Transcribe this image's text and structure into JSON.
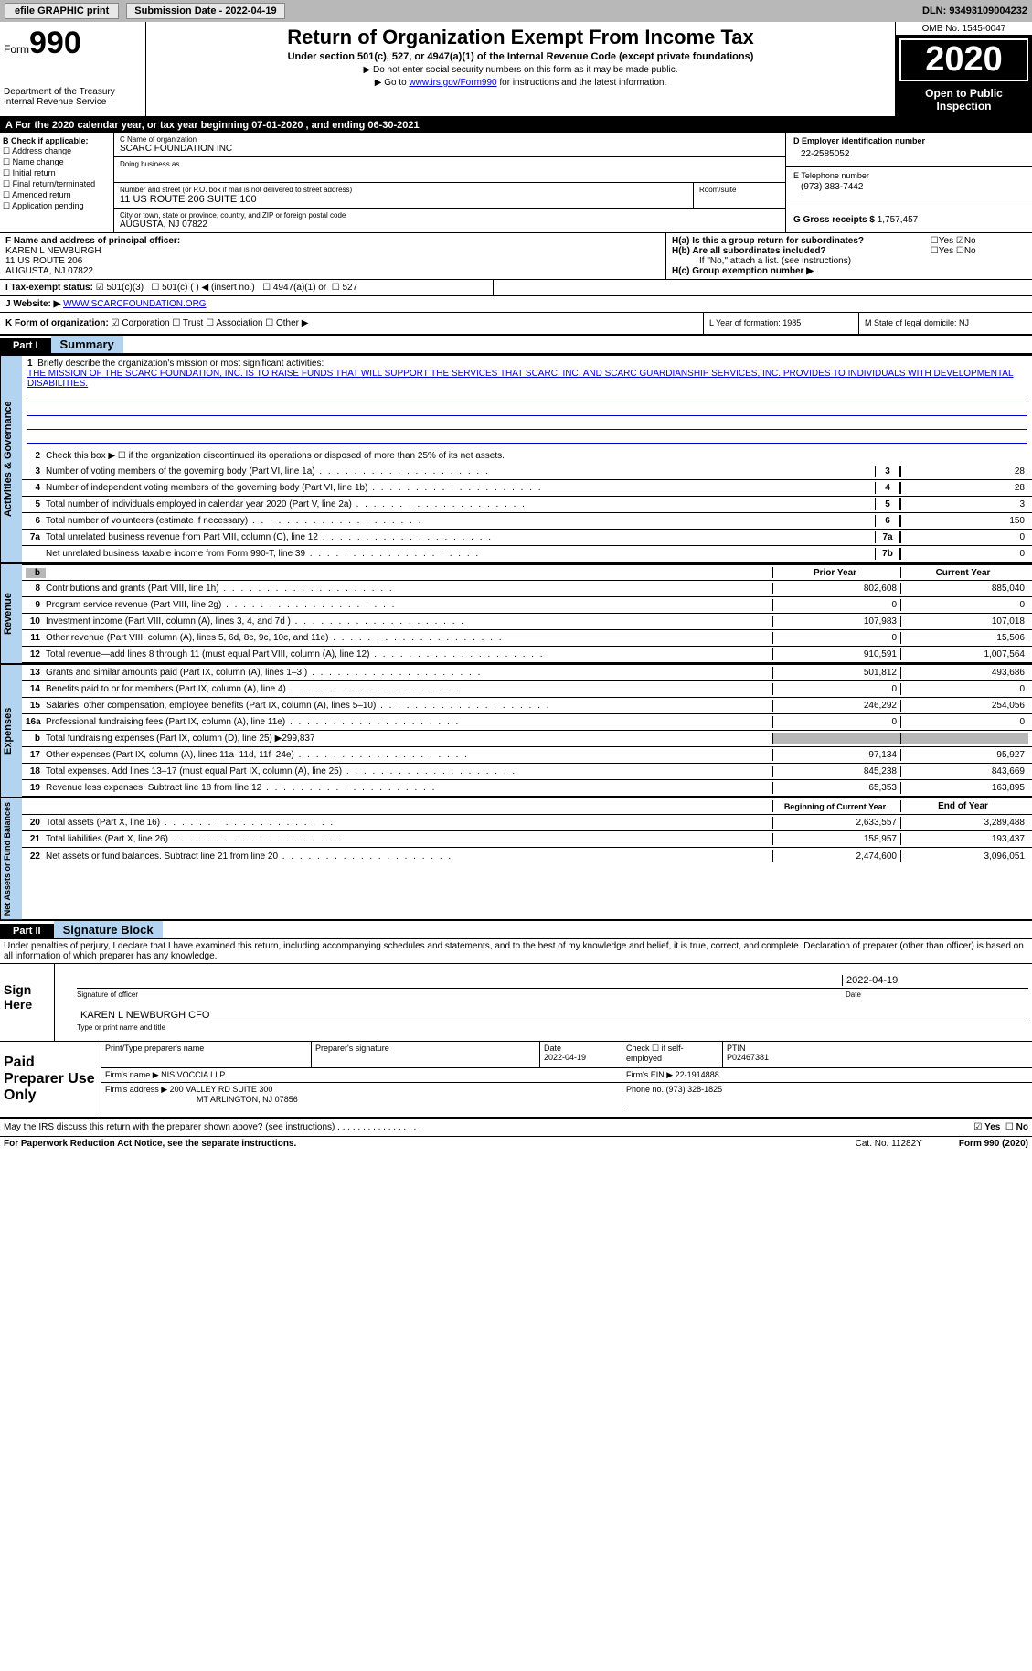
{
  "topbar": {
    "efile": "efile GRAPHIC print",
    "sub_label": "Submission Date - 2022-04-19",
    "dln": "DLN: 93493109004232"
  },
  "header": {
    "form": "Form",
    "form_num": "990",
    "dept": "Department of the Treasury\nInternal Revenue Service",
    "title": "Return of Organization Exempt From Income Tax",
    "sub": "Under section 501(c), 527, or 4947(a)(1) of the Internal Revenue Code (except private foundations)",
    "inst1": "▶ Do not enter social security numbers on this form as it may be made public.",
    "inst2_pre": "▶ Go to ",
    "inst2_link": "www.irs.gov/Form990",
    "inst2_post": " for instructions and the latest information.",
    "omb": "OMB No. 1545-0047",
    "year": "2020",
    "open": "Open to Public Inspection"
  },
  "taxyear": "A For the 2020 calendar year, or tax year beginning 07-01-2020    , and ending 06-30-2021",
  "sectionB": {
    "label": "B Check if applicable:",
    "items": [
      "Address change",
      "Name change",
      "Initial return",
      "Final return/terminated",
      "Amended return",
      "Application pending"
    ]
  },
  "sectionC": {
    "name_lbl": "C Name of organization",
    "name": "SCARC FOUNDATION INC",
    "dba_lbl": "Doing business as",
    "dba": "",
    "addr_lbl": "Number and street (or P.O. box if mail is not delivered to street address)",
    "addr": "11 US ROUTE 206 SUITE 100",
    "suite_lbl": "Room/suite",
    "city_lbl": "City or town, state or province, country, and ZIP or foreign postal code",
    "city": "AUGUSTA, NJ  07822"
  },
  "sectionD": {
    "ein_lbl": "D Employer identification number",
    "ein": "22-2585052",
    "tel_lbl": "E Telephone number",
    "tel": "(973) 383-7442",
    "gross_lbl": "G Gross receipts $",
    "gross": "1,757,457"
  },
  "sectionF": {
    "lbl": "F Name and address of principal officer:",
    "name": "KAREN L NEWBURGH",
    "addr1": "11 US ROUTE 206",
    "addr2": "AUGUSTA, NJ  07822"
  },
  "sectionH": {
    "ha": "H(a)  Is this a group return for subordinates?",
    "ha_yes": "Yes",
    "ha_no": "No",
    "hb": "H(b)  Are all subordinates included?",
    "hb_yes": "Yes",
    "hb_no": "No",
    "hb_note": "If \"No,\" attach a list. (see instructions)",
    "hc": "H(c)  Group exemption number ▶"
  },
  "sectionI": {
    "lbl": "I   Tax-exempt status:",
    "opts": [
      "501(c)(3)",
      "501(c) (  ) ◀ (insert no.)",
      "4947(a)(1) or",
      "527"
    ]
  },
  "sectionJ": {
    "lbl": "J   Website: ▶",
    "val": "WWW.SCARCFOUNDATION.ORG"
  },
  "sectionK": {
    "lbl": "K Form of organization:",
    "opts": [
      "Corporation",
      "Trust",
      "Association",
      "Other ▶"
    ],
    "L": "L Year of formation: 1985",
    "M": "M State of legal domicile: NJ"
  },
  "part1": {
    "hdr": "Part I",
    "title": "Summary"
  },
  "governance": {
    "label": "Activities & Governance",
    "l1": "Briefly describe the organization's mission or most significant activities:",
    "mission": "THE MISSION OF THE SCARC FOUNDATION, INC. IS TO RAISE FUNDS THAT WILL SUPPORT THE SERVICES THAT SCARC, INC. AND SCARC GUARDIANSHIP SERVICES, INC. PROVIDES TO INDIVIDUALS WITH DEVELOPMENTAL DISABILITIES.",
    "l2": "Check this box ▶ ☐  if the organization discontinued its operations or disposed of more than 25% of its net assets.",
    "lines": [
      {
        "n": "3",
        "d": "Number of voting members of the governing body (Part VI, line 1a)",
        "box": "3",
        "v": "28"
      },
      {
        "n": "4",
        "d": "Number of independent voting members of the governing body (Part VI, line 1b)",
        "box": "4",
        "v": "28"
      },
      {
        "n": "5",
        "d": "Total number of individuals employed in calendar year 2020 (Part V, line 2a)",
        "box": "5",
        "v": "3"
      },
      {
        "n": "6",
        "d": "Total number of volunteers (estimate if necessary)",
        "box": "6",
        "v": "150"
      },
      {
        "n": "7a",
        "d": "Total unrelated business revenue from Part VIII, column (C), line 12",
        "box": "7a",
        "v": "0"
      },
      {
        "n": "",
        "d": "Net unrelated business taxable income from Form 990-T, line 39",
        "box": "7b",
        "v": "0"
      }
    ]
  },
  "revenue": {
    "label": "Revenue",
    "prior_hdr": "Prior Year",
    "curr_hdr": "Current Year",
    "lines": [
      {
        "n": "8",
        "d": "Contributions and grants (Part VIII, line 1h)",
        "p": "802,608",
        "c": "885,040"
      },
      {
        "n": "9",
        "d": "Program service revenue (Part VIII, line 2g)",
        "p": "0",
        "c": "0"
      },
      {
        "n": "10",
        "d": "Investment income (Part VIII, column (A), lines 3, 4, and 7d )",
        "p": "107,983",
        "c": "107,018"
      },
      {
        "n": "11",
        "d": "Other revenue (Part VIII, column (A), lines 5, 6d, 8c, 9c, 10c, and 11e)",
        "p": "0",
        "c": "15,506"
      },
      {
        "n": "12",
        "d": "Total revenue—add lines 8 through 11 (must equal Part VIII, column (A), line 12)",
        "p": "910,591",
        "c": "1,007,564"
      }
    ]
  },
  "expenses": {
    "label": "Expenses",
    "lines": [
      {
        "n": "13",
        "d": "Grants and similar amounts paid (Part IX, column (A), lines 1–3 )",
        "p": "501,812",
        "c": "493,686"
      },
      {
        "n": "14",
        "d": "Benefits paid to or for members (Part IX, column (A), line 4)",
        "p": "0",
        "c": "0"
      },
      {
        "n": "15",
        "d": "Salaries, other compensation, employee benefits (Part IX, column (A), lines 5–10)",
        "p": "246,292",
        "c": "254,056"
      },
      {
        "n": "16a",
        "d": "Professional fundraising fees (Part IX, column (A), line 11e)",
        "p": "0",
        "c": "0"
      },
      {
        "n": "b",
        "d": "Total fundraising expenses (Part IX, column (D), line 25) ▶299,837",
        "p": "",
        "c": "",
        "shaded": true
      },
      {
        "n": "17",
        "d": "Other expenses (Part IX, column (A), lines 11a–11d, 11f–24e)",
        "p": "97,134",
        "c": "95,927"
      },
      {
        "n": "18",
        "d": "Total expenses. Add lines 13–17 (must equal Part IX, column (A), line 25)",
        "p": "845,238",
        "c": "843,669"
      },
      {
        "n": "19",
        "d": "Revenue less expenses. Subtract line 18 from line 12",
        "p": "65,353",
        "c": "163,895"
      }
    ]
  },
  "netassets": {
    "label": "Net Assets or Fund Balances",
    "boy_hdr": "Beginning of Current Year",
    "eoy_hdr": "End of Year",
    "lines": [
      {
        "n": "20",
        "d": "Total assets (Part X, line 16)",
        "p": "2,633,557",
        "c": "3,289,488"
      },
      {
        "n": "21",
        "d": "Total liabilities (Part X, line 26)",
        "p": "158,957",
        "c": "193,437"
      },
      {
        "n": "22",
        "d": "Net assets or fund balances. Subtract line 21 from line 20",
        "p": "2,474,600",
        "c": "3,096,051"
      }
    ]
  },
  "part2": {
    "hdr": "Part II",
    "title": "Signature Block",
    "decl": "Under penalties of perjury, I declare that I have examined this return, including accompanying schedules and statements, and to the best of my knowledge and belief, it is true, correct, and complete. Declaration of preparer (other than officer) is based on all information of which preparer has any knowledge.",
    "sign_here": "Sign Here",
    "sig_officer": "Signature of officer",
    "sig_date": "Date",
    "sig_date_val": "2022-04-19",
    "officer": "KAREN L NEWBURGH  CFO",
    "type_name": "Type or print name and title"
  },
  "paid": {
    "lbl": "Paid Preparer Use Only",
    "h1": "Print/Type preparer's name",
    "h2": "Preparer's signature",
    "h3": "Date",
    "h3v": "2022-04-19",
    "h4": "Check ☐ if self-employed",
    "h5": "PTIN",
    "h5v": "P02467381",
    "firm_lbl": "Firm's name   ▶",
    "firm": "NISIVOCCIA LLP",
    "ein_lbl": "Firm's EIN ▶",
    "ein": "22-1914888",
    "addr_lbl": "Firm's address ▶",
    "addr1": "200 VALLEY RD SUITE 300",
    "addr2": "MT ARLINGTON, NJ  07856",
    "phone_lbl": "Phone no.",
    "phone": "(973) 328-1825"
  },
  "discuss": {
    "q": "May the IRS discuss this return with the preparer shown above? (see instructions)",
    "yes": "Yes",
    "no": "No"
  },
  "footer": {
    "pra": "For Paperwork Reduction Act Notice, see the separate instructions.",
    "cat": "Cat. No. 11282Y",
    "form": "Form 990 (2020)"
  }
}
